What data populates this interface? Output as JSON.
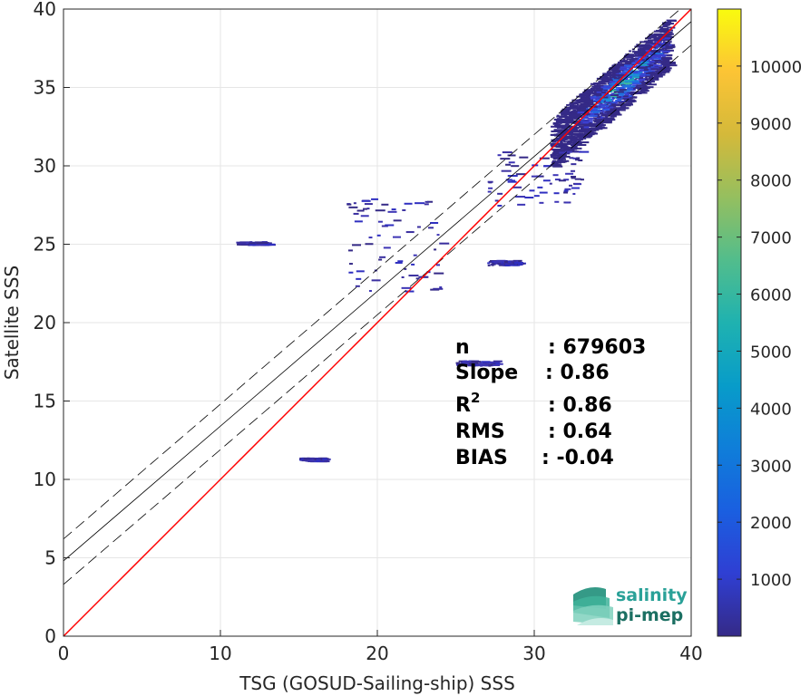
{
  "chart_data": {
    "type": "heatmap",
    "title": "",
    "xlabel": "TSG (GOSUD-Sailing-ship) SSS",
    "ylabel": "Satellite SSS",
    "xlim": [
      0,
      40
    ],
    "ylim": [
      0,
      40
    ],
    "xticks": [
      "0",
      "10",
      "20",
      "30",
      "40"
    ],
    "yticks": [
      "0",
      "5",
      "10",
      "15",
      "20",
      "25",
      "30",
      "35",
      "40"
    ],
    "grid": true,
    "colorbar": {
      "range": [
        0,
        11000
      ],
      "ticks": [
        "1000",
        "2000",
        "3000",
        "4000",
        "5000",
        "6000",
        "7000",
        "8000",
        "9000",
        "10000"
      ],
      "colormap": "parula"
    },
    "lines": {
      "identity": {
        "slope": 1,
        "intercept": 0,
        "color": "#ff0000"
      },
      "regression": {
        "slope": 0.86,
        "intercept": 4.8,
        "color": "#000000"
      },
      "regression_upper": {
        "slope": 0.86,
        "intercept": 6.2,
        "color": "#000000",
        "style": "dashed"
      },
      "regression_lower": {
        "slope": 0.86,
        "intercept": 3.3,
        "color": "#000000",
        "style": "dashed"
      }
    },
    "density_clusters": [
      {
        "x": [
          31,
          38.5
        ],
        "y": [
          31,
          38.5
        ],
        "level": "high"
      },
      {
        "x": [
          27,
          33
        ],
        "y": [
          27.5,
          31
        ],
        "level": "low"
      },
      {
        "x": [
          18,
          24
        ],
        "y": [
          22,
          28
        ],
        "level": "low"
      },
      {
        "x": [
          15,
          16.5
        ],
        "y": [
          11.2,
          11.4
        ],
        "level": "low"
      },
      {
        "x": [
          25,
          27.5
        ],
        "y": [
          17.3,
          17.6
        ],
        "level": "low"
      },
      {
        "x": [
          11,
          13
        ],
        "y": [
          25,
          25.2
        ],
        "level": "low"
      },
      {
        "x": [
          27,
          29
        ],
        "y": [
          23.7,
          24
        ],
        "level": "low"
      }
    ],
    "stats": [
      {
        "label": "n",
        "value": ": 679603"
      },
      {
        "label": "Slope",
        "value": ": 0.86"
      },
      {
        "label": "R",
        "sup": "2",
        "value": ": 0.86"
      },
      {
        "label": "RMS",
        "value": ": 0.64"
      },
      {
        "label": "BIAS",
        "value": ": -0.04"
      }
    ]
  },
  "logo": {
    "line1": "salinity",
    "line2": "pi-mep",
    "colors": {
      "line1": "#2aa198",
      "line2": "#1b6f62"
    }
  }
}
